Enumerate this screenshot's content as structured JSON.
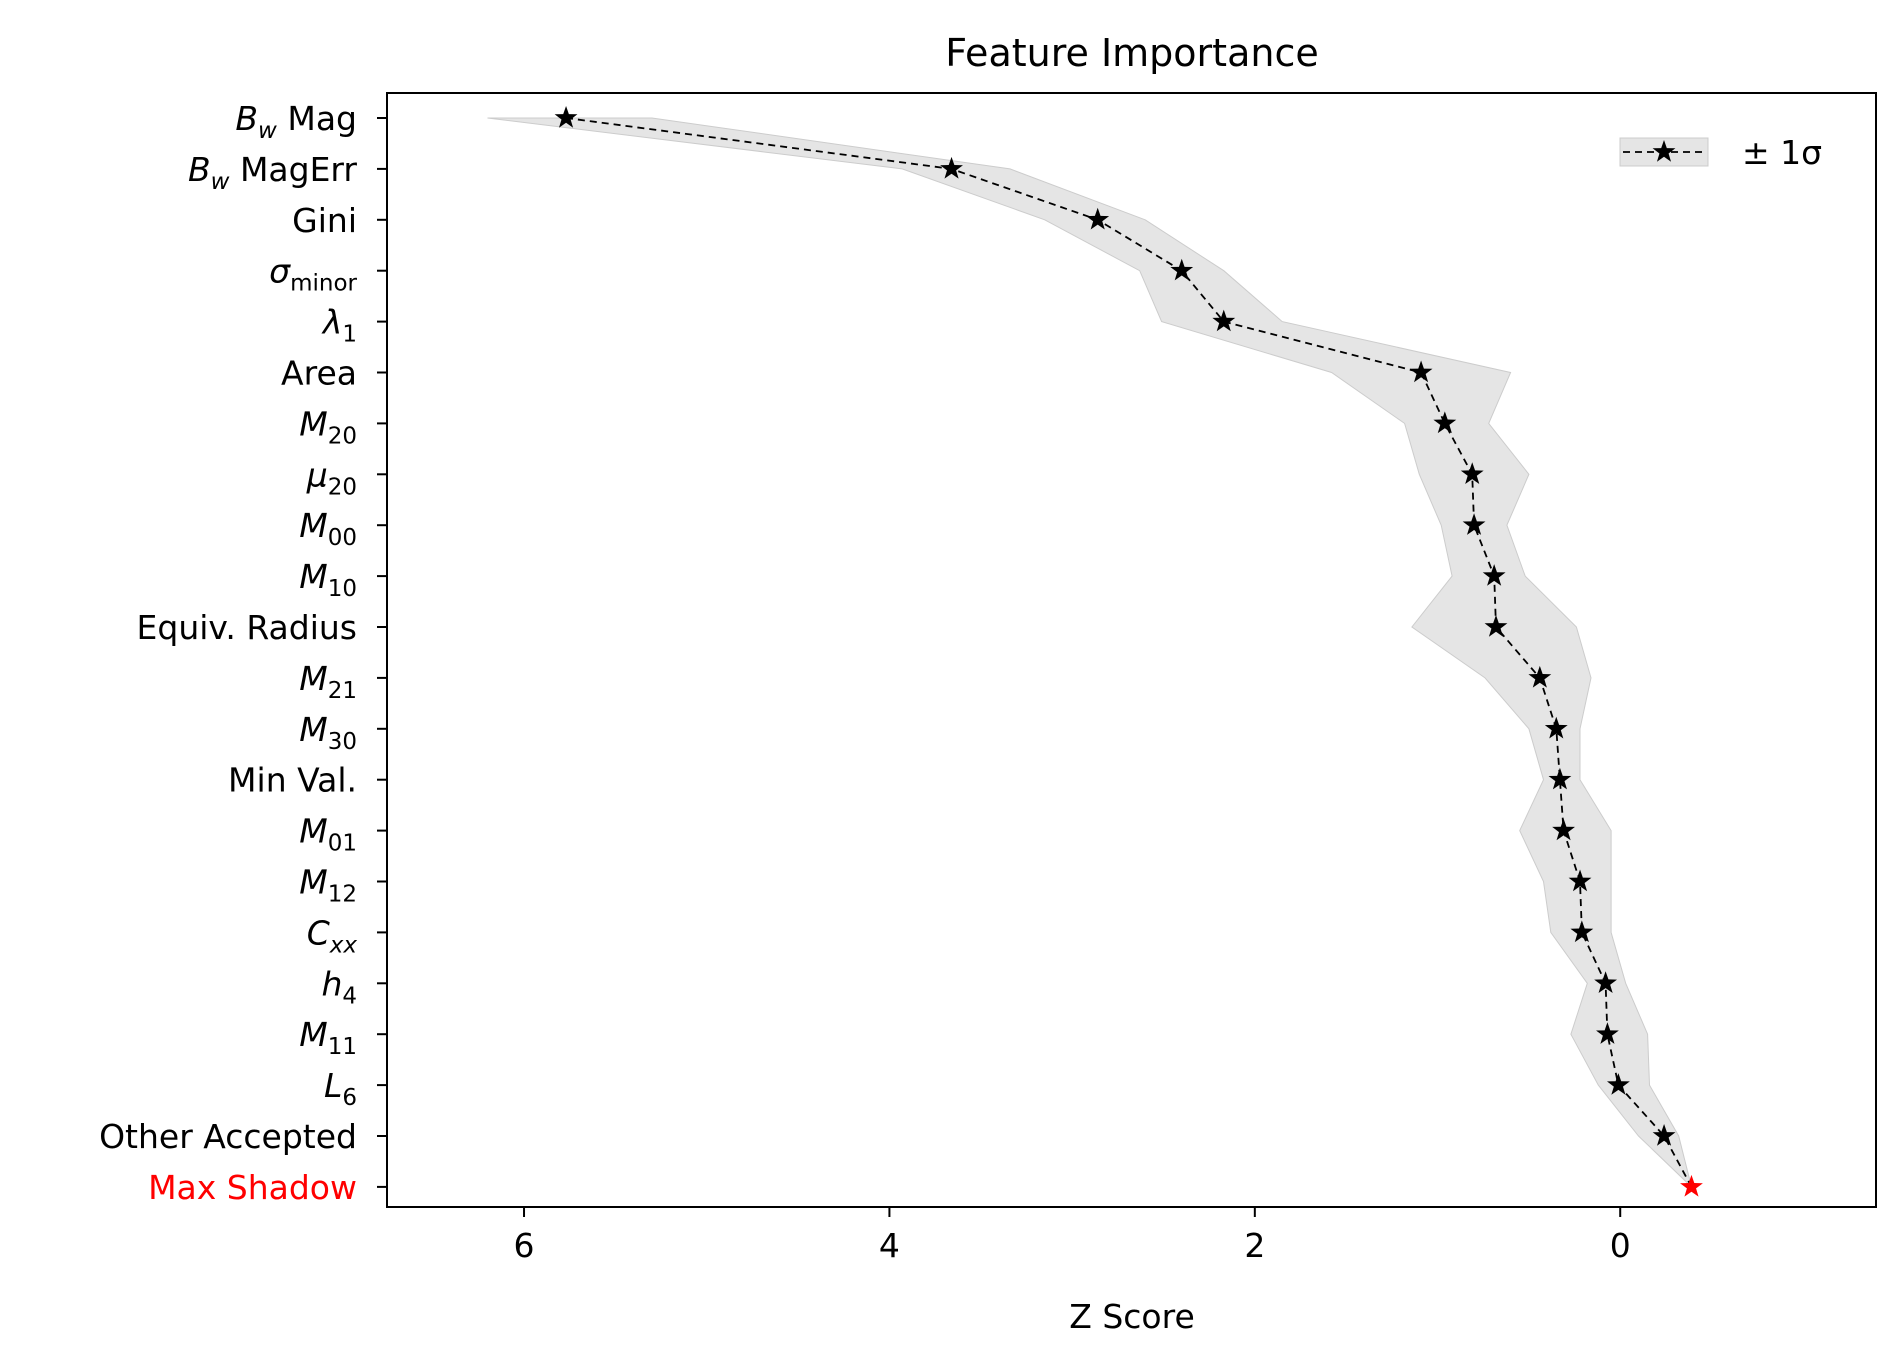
{
  "chart_data": {
    "type": "line",
    "title": "Feature Importance",
    "xlabel": "Z Score",
    "ylabel": "",
    "xlim": [
      6.75,
      -1.4
    ],
    "x_inverted": true,
    "xticks": [
      {
        "value": 6,
        "label": "6"
      },
      {
        "value": 4,
        "label": "4"
      },
      {
        "value": 2,
        "label": "2"
      },
      {
        "value": 0,
        "label": "0"
      }
    ],
    "grid": false,
    "legend": {
      "position": "top-right",
      "label": "± 1σ"
    },
    "colors": {
      "line": "#000000",
      "band": "#e5e5e5",
      "band_edge": "#cccccc",
      "highlight": "#ff0000"
    },
    "categories": [
      {
        "label": "B_w Mag",
        "html": "<tspan font-style='italic'>B</tspan><tspan font-style='italic' font-size='23' dy='8'>w</tspan><tspan dy='-8'> Mag</tspan>"
      },
      {
        "label": "B_w MagErr",
        "html": "<tspan font-style='italic'>B</tspan><tspan font-style='italic' font-size='23' dy='8'>w</tspan><tspan dy='-8'> MagErr</tspan>"
      },
      {
        "label": "Gini",
        "html": "Gini"
      },
      {
        "label": "σ_minor",
        "html": "<tspan font-style='italic'>σ</tspan><tspan font-size='23' dy='8'>minor</tspan>"
      },
      {
        "label": "λ_1",
        "html": "<tspan font-style='italic'>λ</tspan><tspan font-size='23' dy='8'>1</tspan>"
      },
      {
        "label": "Area",
        "html": "Area"
      },
      {
        "label": "M_20",
        "html": "<tspan font-style='italic'>M</tspan><tspan font-size='23' dy='8'>20</tspan>"
      },
      {
        "label": "μ_20",
        "html": "<tspan font-style='italic'>μ</tspan><tspan font-size='23' dy='8'>20</tspan>"
      },
      {
        "label": "M_00",
        "html": "<tspan font-style='italic'>M</tspan><tspan font-size='23' dy='8'>00</tspan>"
      },
      {
        "label": "M_10",
        "html": "<tspan font-style='italic'>M</tspan><tspan font-size='23' dy='8'>10</tspan>"
      },
      {
        "label": "Equiv. Radius",
        "html": "Equiv. Radius"
      },
      {
        "label": "M_21",
        "html": "<tspan font-style='italic'>M</tspan><tspan font-size='23' dy='8'>21</tspan>"
      },
      {
        "label": "M_30",
        "html": "<tspan font-style='italic'>M</tspan><tspan font-size='23' dy='8'>30</tspan>"
      },
      {
        "label": "Min Val.",
        "html": "Min Val."
      },
      {
        "label": "M_01",
        "html": "<tspan font-style='italic'>M</tspan><tspan font-size='23' dy='8'>01</tspan>"
      },
      {
        "label": "M_12",
        "html": "<tspan font-style='italic'>M</tspan><tspan font-size='23' dy='8'>12</tspan>"
      },
      {
        "label": "C_xx",
        "html": "<tspan font-style='italic'>C</tspan><tspan font-style='italic' font-size='23' dy='8'>xx</tspan>"
      },
      {
        "label": "h_4",
        "html": "<tspan font-style='italic'>h</tspan><tspan font-size='23' dy='8'>4</tspan>"
      },
      {
        "label": "M_11",
        "html": "<tspan font-style='italic'>M</tspan><tspan font-size='23' dy='8'>11</tspan>"
      },
      {
        "label": "L_6",
        "html": "<tspan font-style='italic'>L</tspan><tspan font-size='23' dy='8'>6</tspan>"
      },
      {
        "label": "Other Accepted",
        "html": "Other Accepted"
      },
      {
        "label": "Max Shadow",
        "html": "Max Shadow",
        "highlight": true
      }
    ],
    "series": [
      {
        "name": "± 1σ",
        "values": [
          5.77,
          3.66,
          2.86,
          2.4,
          2.17,
          1.09,
          0.96,
          0.81,
          0.8,
          0.69,
          0.68,
          0.44,
          0.35,
          0.33,
          0.31,
          0.22,
          0.21,
          0.08,
          0.07,
          0.01,
          -0.24,
          -0.39
        ],
        "lower": [
          5.3,
          3.34,
          2.6,
          2.17,
          1.85,
          0.6,
          0.72,
          0.5,
          0.62,
          0.52,
          0.24,
          0.16,
          0.22,
          0.22,
          0.05,
          0.05,
          0.05,
          -0.03,
          -0.15,
          -0.16,
          -0.32,
          -0.39
        ],
        "upper": [
          6.2,
          3.93,
          3.15,
          2.63,
          2.51,
          1.58,
          1.18,
          1.1,
          0.98,
          0.92,
          1.14,
          0.74,
          0.5,
          0.42,
          0.55,
          0.42,
          0.38,
          0.18,
          0.27,
          0.12,
          -0.1,
          -0.39
        ]
      }
    ]
  }
}
